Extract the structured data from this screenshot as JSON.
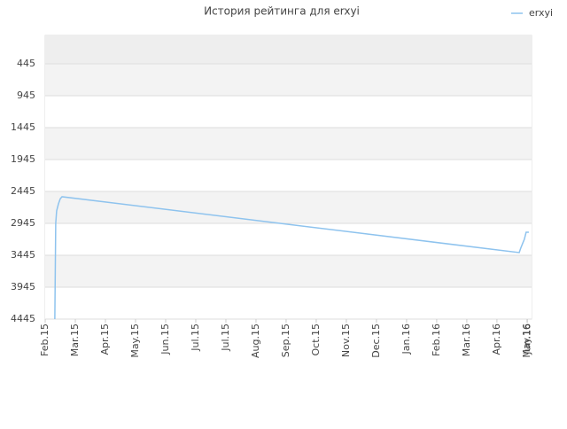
{
  "chart_data": {
    "type": "line",
    "title": "История рейтинга для erxyi",
    "x": [
      0.32,
      0.35,
      0.38,
      0.44,
      0.5,
      0.56,
      15.74,
      15.79,
      15.85,
      15.91,
      15.97,
      16.06
    ],
    "series": [
      {
        "name": "erxyi",
        "color": "#8ec3ee",
        "values": [
          4445,
          2945,
          2750,
          2640,
          2560,
          2528,
          3403,
          3334,
          3264,
          3195,
          3084,
          3084
        ]
      }
    ],
    "xlim": [
      0,
      16.15
    ],
    "xticks": [
      {
        "value": 0,
        "label": "Feb.15"
      },
      {
        "value": 1,
        "label": "Mar.15"
      },
      {
        "value": 2,
        "label": "Apr.15"
      },
      {
        "value": 3,
        "label": "May.15"
      },
      {
        "value": 4,
        "label": "Jun.15"
      },
      {
        "value": 5,
        "label": "Jul.15"
      },
      {
        "value": 6,
        "label": "Jul.15"
      },
      {
        "value": 7,
        "label": "Aug.15"
      },
      {
        "value": 8,
        "label": "Sep.15"
      },
      {
        "value": 9,
        "label": "Oct.15"
      },
      {
        "value": 10,
        "label": "Nov.15"
      },
      {
        "value": 11,
        "label": "Dec.15"
      },
      {
        "value": 12,
        "label": "Jan.16"
      },
      {
        "value": 13,
        "label": "Feb.16"
      },
      {
        "value": 14,
        "label": "Mar.16"
      },
      {
        "value": 15,
        "label": "Apr.16"
      },
      {
        "value": 16,
        "label": "May.16"
      },
      {
        "value": 16.1,
        "label": "Jun.16"
      }
    ],
    "ylim": [
      4445,
      1
    ],
    "yticks": [
      445,
      945,
      1445,
      1945,
      2445,
      2945,
      3445,
      3945,
      4445
    ],
    "grid": true,
    "legend": "top-right"
  }
}
